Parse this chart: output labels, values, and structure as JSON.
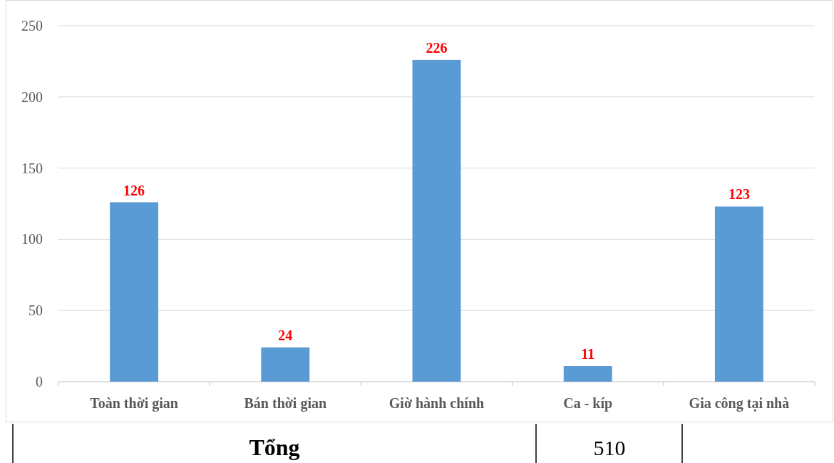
{
  "chart_data": {
    "type": "bar",
    "categories": [
      "Toàn thời gian",
      "Bán thời gian",
      "Giờ hành chính",
      "Ca - kíp",
      "Gia công tại nhà"
    ],
    "values": [
      126,
      24,
      226,
      11,
      123
    ],
    "color": "#5b9bd5",
    "ylim": [
      0,
      250
    ],
    "yticks": [
      0,
      50,
      100,
      150,
      200,
      250
    ],
    "grid": "y",
    "data_labels": true,
    "annotations": [
      "Tổng",
      "510"
    ]
  }
}
